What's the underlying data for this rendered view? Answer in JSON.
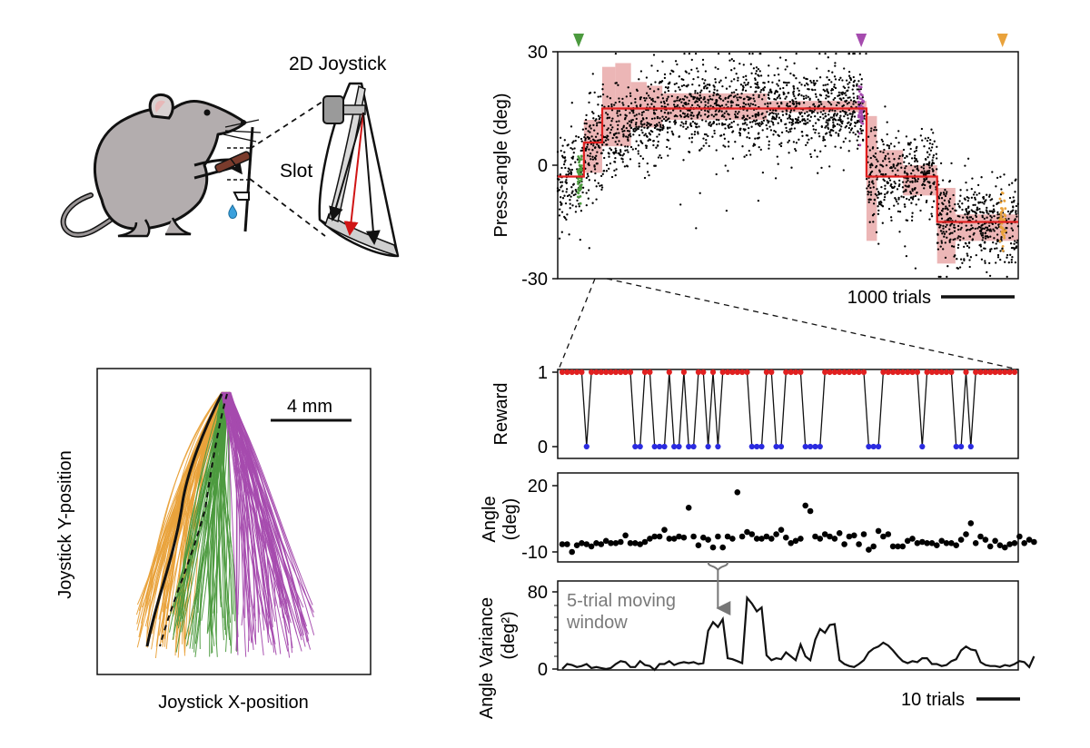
{
  "labels": {
    "joystick_2d": "2D Joystick",
    "slot": "Slot",
    "scale_4mm": "4 mm",
    "joy_y": "Joystick Y-position",
    "joy_x": "Joystick X-position",
    "scale_1000": "1000 trials",
    "scale_10": "10 trials",
    "window_line1": "5-trial moving",
    "window_line2": "window"
  },
  "colors": {
    "orange": "#E9A23B",
    "green": "#4C9A3E",
    "purple": "#A54BAE",
    "red": "#E02020",
    "pink": "#E9A9A9",
    "blue": "#2B2BE0",
    "gray": "#7a7a7a"
  },
  "chart_data": [
    {
      "type": "scatter",
      "ylabel": "Press-angle (deg)",
      "ylim": [
        -30,
        30
      ],
      "yticks": [
        "30",
        "0",
        "-30"
      ],
      "x_range_trials": [
        0,
        8800
      ],
      "markers": [
        {
          "color": "green",
          "trial": 400
        },
        {
          "color": "purple",
          "trial": 5800
        },
        {
          "color": "orange",
          "trial": 8500
        }
      ],
      "target_steps": [
        {
          "x0": 0,
          "x1": 500,
          "y": -3
        },
        {
          "x0": 500,
          "x1": 850,
          "y": 6
        },
        {
          "x0": 850,
          "x1": 2800,
          "y": 15
        },
        {
          "x0": 2800,
          "x1": 5900,
          "y": 15
        },
        {
          "x0": 5900,
          "x1": 7250,
          "y": -3
        },
        {
          "x0": 7250,
          "x1": 8800,
          "y": -15
        }
      ],
      "variance_bands": [
        {
          "x0": 500,
          "x1": 850,
          "lo": -2,
          "hi": 12
        },
        {
          "x0": 850,
          "x1": 1100,
          "lo": 5,
          "hi": 26
        },
        {
          "x0": 1100,
          "x1": 1400,
          "lo": 5,
          "hi": 27
        },
        {
          "x0": 1400,
          "x1": 1700,
          "lo": 10,
          "hi": 22
        },
        {
          "x0": 1700,
          "x1": 2000,
          "lo": 10,
          "hi": 21
        },
        {
          "x0": 2000,
          "x1": 4000,
          "lo": 12,
          "hi": 19
        },
        {
          "x0": 4000,
          "x1": 5900,
          "lo": 14,
          "hi": 17
        },
        {
          "x0": 5900,
          "x1": 6100,
          "lo": -20,
          "hi": 13
        },
        {
          "x0": 6100,
          "x1": 6600,
          "lo": -3,
          "hi": 4
        },
        {
          "x0": 6600,
          "x1": 7250,
          "lo": -8,
          "hi": 0
        },
        {
          "x0": 7250,
          "x1": 7600,
          "lo": -26,
          "hi": -6
        },
        {
          "x0": 7600,
          "x1": 8800,
          "lo": -20,
          "hi": -13
        }
      ]
    },
    {
      "type": "line",
      "ylabel": "Reward",
      "ylim": [
        0,
        1
      ],
      "yticks": [
        "1",
        "0"
      ],
      "series": [
        {
          "values": [
            1,
            1,
            1,
            1,
            1,
            0,
            1,
            1,
            1,
            1,
            1,
            1,
            1,
            1,
            1,
            0,
            0,
            1,
            1,
            0,
            0,
            0,
            1,
            0,
            0,
            1,
            0,
            0,
            1,
            1,
            0,
            1,
            0,
            1,
            1,
            1,
            1,
            1,
            1,
            0,
            0,
            0,
            1,
            1,
            0,
            0,
            1,
            1,
            1,
            1,
            0,
            0,
            0,
            0,
            1,
            1,
            1,
            1,
            1,
            1,
            1,
            1,
            1,
            0,
            0,
            0,
            1,
            1,
            1,
            1,
            1,
            1,
            1,
            1,
            0,
            1,
            1,
            1,
            1,
            1,
            1,
            0,
            0,
            1,
            0,
            1,
            1,
            1,
            1,
            1,
            1,
            1,
            1,
            1
          ]
        }
      ]
    },
    {
      "type": "scatter",
      "ylabel": "Angle (deg)",
      "ylim": [
        -10,
        20
      ],
      "yticks": [
        "20",
        "-10"
      ],
      "series": [
        {
          "values": [
            -6.5,
            -6.5,
            -10,
            -7,
            -6,
            -6.5,
            -7.5,
            -6,
            -6.5,
            -5,
            -6,
            -6,
            -5.5,
            -2.5,
            -6,
            -6,
            -6.5,
            -5.5,
            -4,
            -3,
            -3,
            0,
            -4,
            -4,
            -3,
            -3.5,
            10,
            -3,
            -7,
            -3.5,
            -4.5,
            -8,
            -3,
            -8,
            -3,
            -4,
            17,
            -3,
            -1,
            -2,
            -4,
            -4,
            -3,
            -4,
            -2,
            0,
            -3.5,
            -6,
            -5,
            -4,
            11,
            8.5,
            -3,
            -4,
            -2,
            -3,
            -4,
            -1.5,
            -6.5,
            -3,
            -2.5,
            -6.5,
            -2,
            -9,
            -7.5,
            -0.5,
            -3,
            -2,
            -7.5,
            -7.5,
            -7.5,
            -5,
            -4,
            -6,
            -5.5,
            -6,
            -6,
            -7,
            -5,
            -6,
            -6,
            -7,
            -4.5,
            -2,
            3,
            -6,
            -3,
            -4.5,
            -7.5,
            -5,
            -7,
            -8,
            -6.5,
            -6,
            -3,
            -6,
            -4.5,
            -5.5
          ]
        }
      ]
    },
    {
      "type": "line",
      "ylabel": "Angle Variance (deg²)",
      "ylim": [
        0,
        80
      ],
      "yticks": [
        "80",
        "0"
      ],
      "window_trials": [
        30,
        34
      ],
      "series": [
        {
          "values": [
            1,
            6,
            5,
            3,
            4,
            6,
            2,
            3,
            2,
            1,
            2,
            6,
            9,
            8,
            3,
            3,
            9,
            5,
            4,
            0,
            6,
            6,
            9,
            5,
            7,
            8,
            7,
            8,
            6,
            7,
            40,
            49,
            44,
            52,
            12,
            11,
            9,
            7,
            74,
            68,
            60,
            64,
            15,
            10,
            12,
            11,
            18,
            14,
            10,
            26,
            14,
            10,
            31,
            42,
            38,
            46,
            47,
            10,
            6,
            4,
            3,
            6,
            10,
            18,
            22,
            24,
            28,
            25,
            20,
            14,
            9,
            7,
            9,
            8,
            12,
            12,
            6,
            6,
            4,
            5,
            9,
            11,
            20,
            24,
            21,
            20,
            8,
            5,
            4,
            4,
            3,
            5,
            4,
            6,
            9,
            8,
            3,
            14
          ]
        }
      ]
    }
  ]
}
